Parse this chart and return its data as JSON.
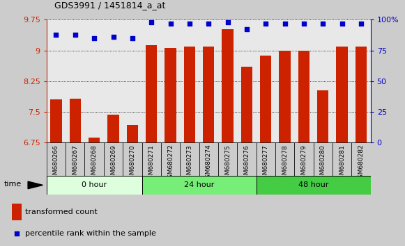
{
  "title": "GDS3991 / 1451814_a_at",
  "categories": [
    "GSM680266",
    "GSM680267",
    "GSM680268",
    "GSM680269",
    "GSM680270",
    "GSM680271",
    "GSM680272",
    "GSM680273",
    "GSM680274",
    "GSM680275",
    "GSM680276",
    "GSM680277",
    "GSM680278",
    "GSM680279",
    "GSM680280",
    "GSM680281",
    "GSM680282"
  ],
  "bar_values": [
    7.81,
    7.82,
    6.87,
    7.44,
    7.18,
    9.13,
    9.06,
    9.09,
    9.1,
    9.52,
    8.6,
    8.87,
    8.99,
    9.0,
    8.03,
    9.1,
    9.1
  ],
  "percentile_values": [
    88,
    88,
    85,
    86,
    85,
    98,
    97,
    97,
    97,
    98,
    92,
    97,
    97,
    97,
    97,
    97,
    97
  ],
  "bar_color": "#cc2200",
  "dot_color": "#0000cc",
  "ylim_left": [
    6.75,
    9.75
  ],
  "ylim_right": [
    0,
    100
  ],
  "yticks_left": [
    6.75,
    7.5,
    8.25,
    9.0,
    9.75
  ],
  "yticks_right": [
    0,
    25,
    50,
    75,
    100
  ],
  "ytick_labels_left": [
    "6.75",
    "7.5",
    "8.25",
    "9",
    "9.75"
  ],
  "ytick_labels_right": [
    "0",
    "25",
    "50",
    "75",
    "100%"
  ],
  "groups": [
    {
      "label": "0 hour",
      "start": 0,
      "end": 5,
      "color": "#ddffdd"
    },
    {
      "label": "24 hour",
      "start": 5,
      "end": 11,
      "color": "#77ee77"
    },
    {
      "label": "48 hour",
      "start": 11,
      "end": 17,
      "color": "#44cc44"
    }
  ],
  "legend_bar_label": "transformed count",
  "legend_dot_label": "percentile rank within the sample",
  "time_label": "time",
  "bg_color": "#cccccc",
  "plot_bg_color": "#e8e8e8",
  "xtick_bg_color": "#cccccc",
  "grid_color": "#000000",
  "figwidth": 5.81,
  "figheight": 3.54,
  "dpi": 100
}
